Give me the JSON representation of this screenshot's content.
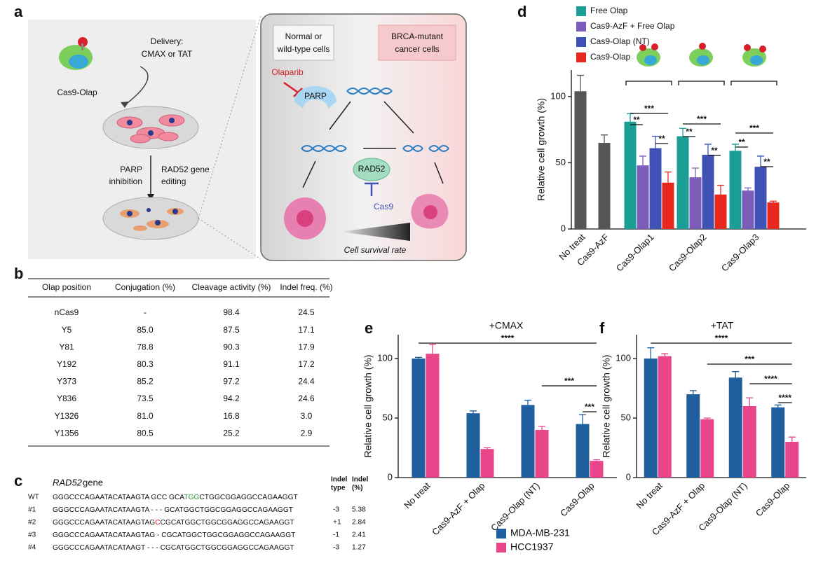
{
  "panel_labels": [
    "a",
    "b",
    "c",
    "d",
    "e",
    "f"
  ],
  "panel_a": {
    "delivery": [
      "Delivery:",
      "CMAX or TAT"
    ],
    "protein": "Cas9-Olap",
    "step_left": [
      "PARP",
      "inhibition"
    ],
    "step_right": [
      "RAD52 gene",
      "editing"
    ],
    "normal": [
      "Normal or",
      "wild-type cells"
    ],
    "cancer": [
      "BRCA-mutant",
      "cancer cells"
    ],
    "drug": "Olaparib",
    "parp": "PARP",
    "rad52": "RAD52",
    "cas9": "Cas9",
    "survival": "Cell survival rate"
  },
  "table": {
    "header": [
      "Olap position",
      "Conjugation (%)",
      "Cleavage activity (%)",
      "Indel freq. (%)"
    ],
    "rows": [
      [
        "nCas9",
        "-",
        "98.4",
        "24.5"
      ],
      [
        "Y5",
        "85.0",
        "87.5",
        "17.1"
      ],
      [
        "Y81",
        "78.8",
        "90.3",
        "17.9"
      ],
      [
        "Y192",
        "80.3",
        "91.1",
        "17.2"
      ],
      [
        "Y373",
        "85.2",
        "97.2",
        "24.4"
      ],
      [
        "Y836",
        "73.5",
        "94.2",
        "24.6"
      ],
      [
        "Y1326",
        "81.0",
        "16.8",
        "3.0"
      ],
      [
        "Y1356",
        "80.5",
        "25.2",
        "2.9"
      ]
    ]
  },
  "sequences": {
    "gene": "RAD52",
    "gene_suffix": "gene",
    "headers": [
      [
        "Indel",
        "type"
      ],
      [
        "Indel",
        "(%)"
      ]
    ],
    "rows": [
      {
        "label": "WT",
        "seq": [
          "GGGCCCAGAATACATAAGTA GCC GCA",
          {
            "text": "TGG",
            "color": "#2a9d3a"
          },
          "CTGGCGGAGGCCAGAAGGT"
        ]
      },
      {
        "label": "#1",
        "seq": [
          "GGGCCCAGAATACATAAGTA - - - GCATGGCTGGCGGAGGCCAGAAGGT"
        ],
        "type": "-3",
        "pct": "5.38"
      },
      {
        "label": "#2",
        "seq": [
          "GGGCCCAGAATACATAAGTAG",
          {
            "text": "C",
            "color": "#e0261c"
          },
          "CGCATGGCTGGCGGAGGCCAGAAGGT"
        ],
        "type": "+1",
        "pct": "2.84"
      },
      {
        "label": "#3",
        "seq": [
          "GGGCCCAGAATACATAAGTAG - CGCATGGCTGGCGGAGGCCAGAAGGT"
        ],
        "type": "-1",
        "pct": "2.41"
      },
      {
        "label": "#4",
        "seq": [
          "GGGCCCAGAATACATAAGT - - - CGCATGGCTGGCGGAGGCCAGAAGGT"
        ],
        "type": "-3",
        "pct": "1.27"
      }
    ]
  },
  "chart_data": [
    {
      "type": "bar",
      "ylabel": "Relative cell growth (%)",
      "categories": [
        "No treat",
        "Cas9-AzF",
        "Cas9-Olap1",
        "Cas9-Olap2",
        "Cas9-Olap3"
      ],
      "control": {
        "color": "#555555",
        "values": [
          104,
          65,
          null,
          null,
          null
        ],
        "errors": [
          12,
          6,
          null,
          null,
          null
        ]
      },
      "series": [
        {
          "name": "Free Olap",
          "color": "#1a9e96",
          "values": [
            null,
            null,
            81,
            70,
            59
          ],
          "errors": [
            null,
            null,
            6,
            6,
            5
          ]
        },
        {
          "name": "Cas9-AzF + Free Olap",
          "color": "#7b5cb8",
          "values": [
            null,
            null,
            48,
            39,
            29
          ],
          "errors": [
            null,
            null,
            7,
            7,
            2
          ]
        },
        {
          "name": "Cas9-Olap (NT)",
          "color": "#3f51b5",
          "values": [
            null,
            null,
            61,
            56,
            47
          ],
          "errors": [
            null,
            null,
            9,
            8,
            8
          ]
        },
        {
          "name": "Cas9-Olap",
          "color": "#e8281e",
          "values": [
            null,
            null,
            35,
            26,
            20
          ],
          "errors": [
            null,
            null,
            8,
            7,
            1
          ]
        }
      ],
      "ylim": [
        0,
        120
      ],
      "yticks": [
        0,
        50,
        100
      ],
      "significance": [
        "***",
        "**",
        "**",
        "***",
        "**",
        "**",
        "***",
        "**",
        "**"
      ]
    },
    {
      "type": "bar",
      "title": "+CMAX",
      "ylabel": "Relative cell growth (%)",
      "categories": [
        "No treat",
        "Cas9-AzF + Olap",
        "Cas9-Olap (NT)",
        "Cas9-Olap"
      ],
      "series": [
        {
          "name": "MDA-MB-231",
          "color": "#1f5f9e",
          "values": [
            100,
            54,
            61,
            45
          ],
          "errors": [
            1,
            2,
            4,
            8
          ]
        },
        {
          "name": "HCC1937",
          "color": "#e8458b",
          "values": [
            104,
            24,
            40,
            14
          ],
          "errors": [
            8,
            1,
            3,
            1
          ]
        }
      ],
      "ylim": [
        0,
        120
      ],
      "yticks": [
        0,
        50,
        100
      ],
      "significance": [
        "****",
        "***",
        "***"
      ]
    },
    {
      "type": "bar",
      "title": "+TAT",
      "ylabel": "Relative cell growth (%)",
      "categories": [
        "No treat",
        "Cas9-AzF + Olap",
        "Cas9-Olap (NT)",
        "Cas9-Olap"
      ],
      "series": [
        {
          "color": "#1f5f9e",
          "values": [
            100,
            70,
            84,
            59
          ],
          "errors": [
            9,
            3,
            5,
            2
          ]
        },
        {
          "color": "#e8458b",
          "values": [
            102,
            49,
            60,
            30
          ],
          "errors": [
            2,
            1,
            7,
            4
          ]
        }
      ],
      "ylim": [
        0,
        120
      ],
      "yticks": [
        0,
        50,
        100
      ],
      "significance": [
        "****",
        "***",
        "****",
        "****"
      ]
    }
  ]
}
